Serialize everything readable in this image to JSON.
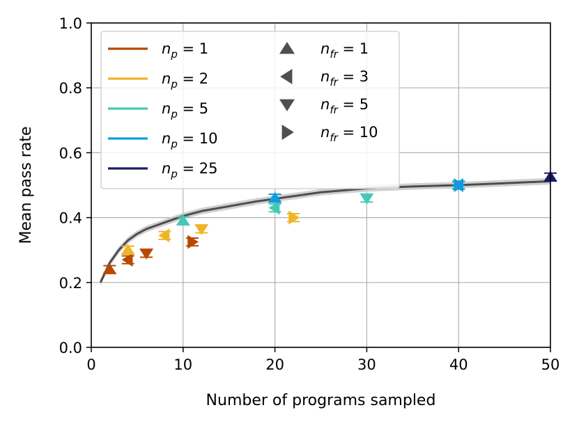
{
  "chart_data": {
    "type": "scatter",
    "xlabel": "Number of programs sampled",
    "ylabel": "Mean pass rate",
    "xlim": [
      0,
      50
    ],
    "ylim": [
      0,
      1
    ],
    "xticks": [
      "0",
      "10",
      "20",
      "30",
      "40",
      "50"
    ],
    "yticks": [
      "0.0",
      "0.2",
      "0.4",
      "0.6",
      "0.8",
      "1.0"
    ],
    "grid": true,
    "legend_position": "top-left",
    "colors": {
      "np1": "#b84a00",
      "np2": "#f0b428",
      "np5": "#48c8b4",
      "np10": "#109cdc",
      "np25": "#1c1c64",
      "curve": "#4d4d4d",
      "band": "#c8c8c8",
      "marker_legend": "#4d5050"
    },
    "legend_np": [
      {
        "key": "np1",
        "label_main": "n",
        "label_sub": "p",
        "label_tail": " = 1"
      },
      {
        "key": "np2",
        "label_main": "n",
        "label_sub": "p",
        "label_tail": " = 2"
      },
      {
        "key": "np5",
        "label_main": "n",
        "label_sub": "p",
        "label_tail": " = 5"
      },
      {
        "key": "np10",
        "label_main": "n",
        "label_sub": "p",
        "label_tail": " = 10"
      },
      {
        "key": "np25",
        "label_main": "n",
        "label_sub": "p",
        "label_tail": " = 25"
      }
    ],
    "legend_nfr": [
      {
        "marker": "up",
        "label_main": "n",
        "label_sub": "fr",
        "label_tail": " = 1"
      },
      {
        "marker": "left",
        "label_main": "n",
        "label_sub": "fr",
        "label_tail": " = 3"
      },
      {
        "marker": "down",
        "label_main": "n",
        "label_sub": "fr",
        "label_tail": " = 5"
      },
      {
        "marker": "right",
        "label_main": "n",
        "label_sub": "fr",
        "label_tail": " = 10"
      }
    ],
    "curve": {
      "x": [
        1,
        2,
        3,
        4,
        5,
        6,
        8,
        10,
        12,
        15,
        18,
        20,
        25,
        30,
        35,
        40,
        45,
        50
      ],
      "y": [
        0.2,
        0.26,
        0.3,
        0.33,
        0.35,
        0.365,
        0.385,
        0.405,
        0.42,
        0.435,
        0.45,
        0.458,
        0.478,
        0.49,
        0.496,
        0.5,
        0.506,
        0.512
      ],
      "band": 0.01
    },
    "points": [
      {
        "x": 2,
        "y": 0.24,
        "marker": "up",
        "color_key": "np1",
        "err": 0.012
      },
      {
        "x": 4,
        "y": 0.27,
        "marker": "left",
        "color_key": "np1",
        "err": 0.012
      },
      {
        "x": 6,
        "y": 0.29,
        "marker": "down",
        "color_key": "np1",
        "err": 0.012
      },
      {
        "x": 11,
        "y": 0.325,
        "marker": "right",
        "color_key": "np1",
        "err": 0.012
      },
      {
        "x": 4,
        "y": 0.3,
        "marker": "up",
        "color_key": "np2",
        "err": 0.012
      },
      {
        "x": 8,
        "y": 0.345,
        "marker": "left",
        "color_key": "np2",
        "err": 0.012
      },
      {
        "x": 12,
        "y": 0.365,
        "marker": "down",
        "color_key": "np2",
        "err": 0.012
      },
      {
        "x": 22,
        "y": 0.4,
        "marker": "right",
        "color_key": "np2",
        "err": 0.012
      },
      {
        "x": 10,
        "y": 0.39,
        "marker": "up",
        "color_key": "np5",
        "err": 0.012
      },
      {
        "x": 20,
        "y": 0.43,
        "marker": "left",
        "color_key": "np5",
        "err": 0.012
      },
      {
        "x": 30,
        "y": 0.46,
        "marker": "down",
        "color_key": "np5",
        "err": 0.012
      },
      {
        "x": 20,
        "y": 0.46,
        "marker": "up",
        "color_key": "np10",
        "err": 0.012
      },
      {
        "x": 40,
        "y": 0.5,
        "marker": "left",
        "color_key": "np10",
        "err": 0.012
      },
      {
        "x": 40,
        "y": 0.5,
        "marker": "right",
        "color_key": "np10",
        "err": 0.012
      },
      {
        "x": 50,
        "y": 0.525,
        "marker": "up",
        "color_key": "np25",
        "err": 0.012
      }
    ]
  }
}
